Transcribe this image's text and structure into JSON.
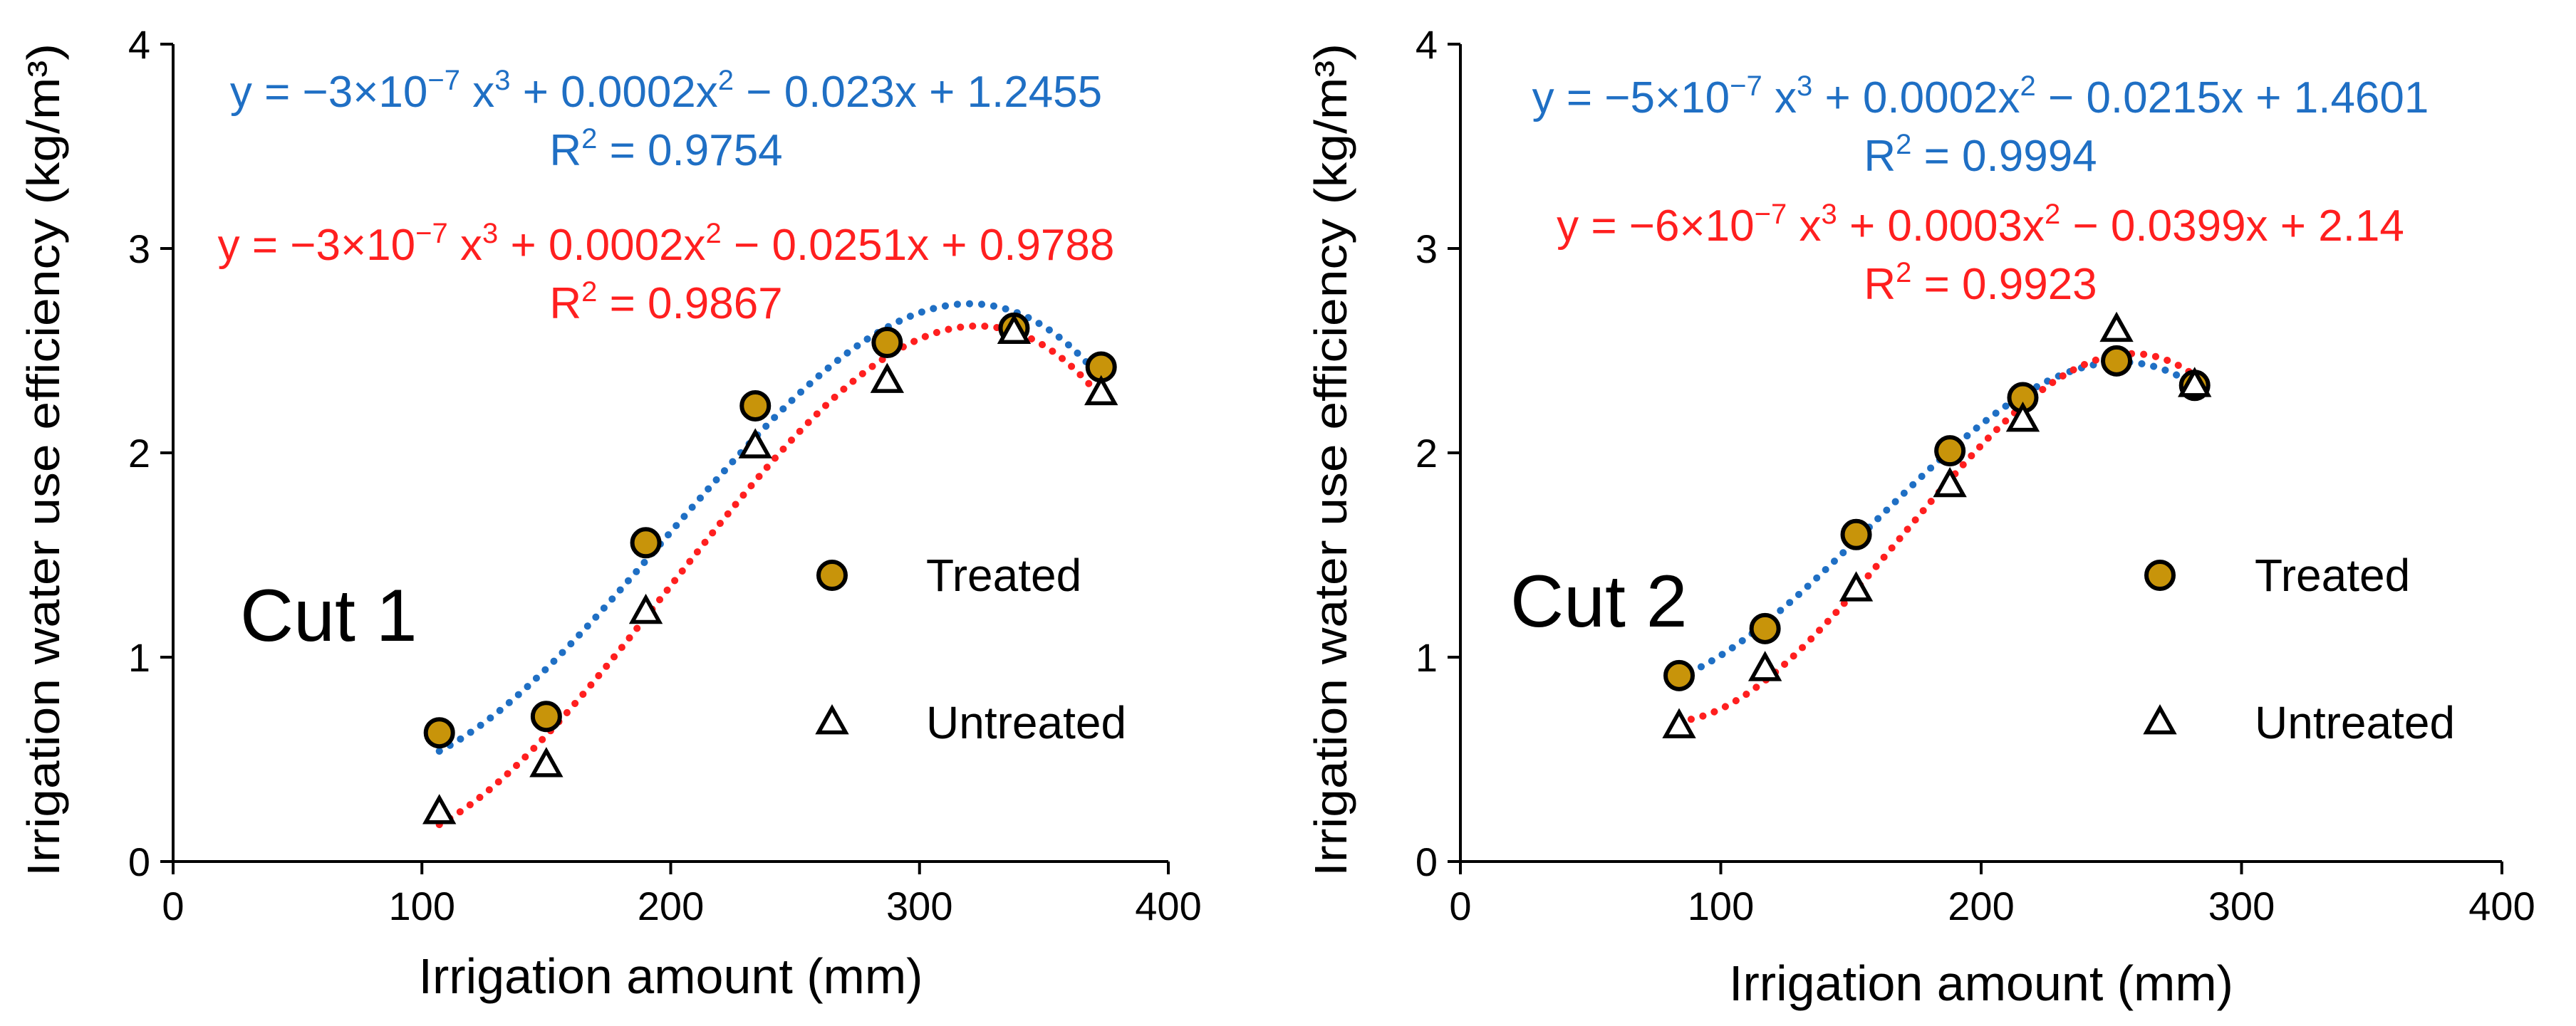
{
  "colors": {
    "treated_line": "#1f6fc4",
    "untreated_line": "#ff1f1f",
    "treated_marker": "#c8940a",
    "axis": "#000000"
  },
  "chart_data": [
    {
      "type": "scatter",
      "panel_label": "Cut 1",
      "xlabel": "Irrigation amount (mm)",
      "ylabel": "Irrigation water use efficiency (kg/m³)",
      "xlim": [
        0,
        400
      ],
      "ylim": [
        0,
        4
      ],
      "xticks": [
        "0",
        "100",
        "200",
        "300",
        "400"
      ],
      "yticks": [
        "0",
        "1",
        "2",
        "3",
        "4"
      ],
      "legend": {
        "placement": "center-right",
        "treated": "Treated",
        "untreated": "Untreated"
      },
      "series": [
        {
          "name": "Treated",
          "marker": "circle",
          "x": [
            107,
            150,
            190,
            234,
            287,
            338,
            373
          ],
          "y": [
            0.63,
            0.71,
            1.56,
            2.23,
            2.54,
            2.61,
            2.42
          ],
          "trendline": {
            "type": "poly3",
            "x_range": [
              107,
              373
            ]
          },
          "equation": {
            "prefix": "y = −3×10",
            "exp": "−7",
            "mid1": " x",
            "pow3": "3",
            "mid2": " + 0.0002x",
            "pow2": "2",
            "rest": " − 0.023x + 1.2455"
          },
          "r2": {
            "label": "R",
            "pow": "2",
            "value": " = 0.9754"
          }
        },
        {
          "name": "Untreated",
          "marker": "triangle",
          "x": [
            107,
            150,
            190,
            234,
            287,
            338,
            373
          ],
          "y": [
            0.24,
            0.47,
            1.22,
            2.03,
            2.35,
            2.59,
            2.29
          ],
          "trendline": {
            "type": "poly3",
            "x_range": [
              107,
              373
            ]
          },
          "equation": {
            "prefix": "y = −3×10",
            "exp": "−7",
            "mid1": " x",
            "pow3": "3",
            "mid2": " + 0.0002x",
            "pow2": "2",
            "rest": " − 0.0251x + 0.9788"
          },
          "r2": {
            "label": "R",
            "pow": "2",
            "value": " = 0.9867"
          }
        }
      ]
    },
    {
      "type": "scatter",
      "panel_label": "Cut 2",
      "xlabel": "Irrigation amount (mm)",
      "ylabel": "Irrigation water use efficiency (kg/m³)",
      "xlim": [
        0,
        400
      ],
      "ylim": [
        0,
        4
      ],
      "xticks": [
        "0",
        "100",
        "200",
        "300",
        "400"
      ],
      "yticks": [
        "0",
        "1",
        "2",
        "3",
        "4"
      ],
      "legend": {
        "placement": "center-right",
        "treated": "Treated",
        "untreated": "Untreated"
      },
      "series": [
        {
          "name": "Treated",
          "marker": "circle",
          "x": [
            84,
            117,
            152,
            188,
            216,
            252,
            282
          ],
          "y": [
            0.91,
            1.14,
            1.6,
            2.01,
            2.27,
            2.45,
            2.33
          ],
          "trendline": {
            "type": "poly3",
            "x_range": [
              84,
              282
            ]
          },
          "equation": {
            "prefix": "y = −5×10",
            "exp": "−7",
            "mid1": " x",
            "pow3": "3",
            "mid2": " + 0.0002x",
            "pow2": "2",
            "rest": " − 0.0215x + 1.4601"
          },
          "r2": {
            "label": "R",
            "pow": "2",
            "value": " = 0.9994"
          }
        },
        {
          "name": "Untreated",
          "marker": "triangle",
          "x": [
            84,
            117,
            152,
            188,
            216,
            252,
            282
          ],
          "y": [
            0.66,
            0.94,
            1.33,
            1.84,
            2.16,
            2.6,
            2.33
          ],
          "trendline": {
            "type": "poly3",
            "x_range": [
              84,
              282
            ]
          },
          "equation": {
            "prefix": "y = −6×10",
            "exp": "−7",
            "mid1": " x",
            "pow3": "3",
            "mid2": " + 0.0003x",
            "pow2": "2",
            "rest": " − 0.0399x + 2.14"
          },
          "r2": {
            "label": "R",
            "pow": "2",
            "value": " = 0.9923"
          }
        }
      ]
    }
  ]
}
